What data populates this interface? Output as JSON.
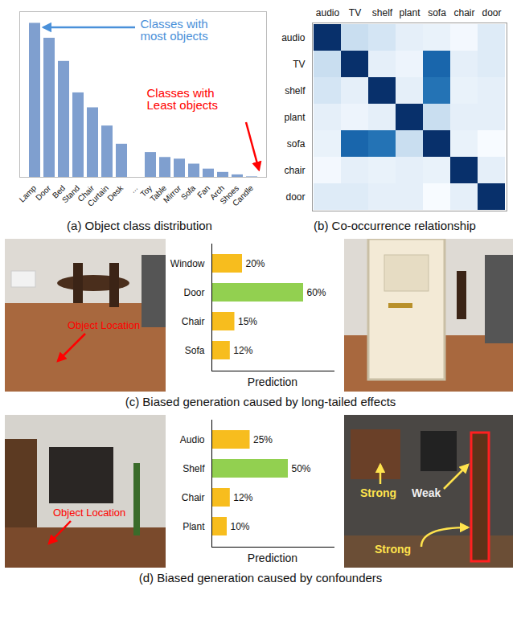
{
  "chart_data": [
    {
      "type": "bar",
      "title": "(a) Object class distribution",
      "categories": [
        "Lamp",
        "Door",
        "Bed",
        "Stand",
        "Chair",
        "Curtain",
        "Desk",
        "...",
        "Toy",
        "Table",
        "Mirror",
        "Sofa",
        "Fan",
        "Arch",
        "Shoes",
        "Candle"
      ],
      "values": [
        93,
        84,
        70,
        51,
        42,
        31,
        20,
        null,
        15,
        12,
        11,
        8,
        5,
        3,
        1.5,
        0.3
      ],
      "color": "#7f9fcf",
      "ylim": [
        0,
        100
      ],
      "tick_labels": "x",
      "annotations": [
        "Classes with most objects",
        "Classes with Least objects"
      ]
    },
    {
      "type": "heatmap",
      "title": "(b) Co-occurrence relationship",
      "categories": [
        "audio",
        "TV",
        "shelf",
        "plant",
        "sofa",
        "chair",
        "door"
      ],
      "values": [
        [
          1.0,
          0.25,
          0.2,
          0.12,
          0.1,
          0.05,
          0.15
        ],
        [
          0.25,
          1.0,
          0.12,
          0.08,
          0.8,
          0.12,
          0.15
        ],
        [
          0.2,
          0.12,
          1.0,
          0.12,
          0.75,
          0.1,
          0.12
        ],
        [
          0.12,
          0.08,
          0.12,
          1.0,
          0.25,
          0.12,
          0.12
        ],
        [
          0.1,
          0.8,
          0.75,
          0.25,
          1.0,
          0.1,
          0.03
        ],
        [
          0.05,
          0.12,
          0.1,
          0.12,
          0.1,
          1.0,
          0.12
        ],
        [
          0.15,
          0.15,
          0.12,
          0.12,
          0.03,
          0.12,
          1.0
        ]
      ]
    },
    {
      "type": "bar",
      "orientation": "horizontal",
      "title": "(c) Biased generation caused by long-tailed effects",
      "xlabel": "Prediction",
      "categories": [
        "Window",
        "Door",
        "Chair",
        "Sofa"
      ],
      "values": [
        20,
        60,
        15,
        12
      ],
      "value_labels": [
        "20%",
        "60%",
        "15%",
        "12%"
      ],
      "colors": [
        "#f7bd1e",
        "#92d050",
        "#f7bd1e",
        "#f7bd1e"
      ],
      "xlim": [
        0,
        80
      ],
      "data_labels": true,
      "tick_labels": "y",
      "annotations": [
        "Object Location"
      ]
    },
    {
      "type": "bar",
      "orientation": "horizontal",
      "title": "(d) Biased generation caused by confounders",
      "xlabel": "Prediction",
      "categories": [
        "Audio",
        "Shelf",
        "Chair",
        "Plant"
      ],
      "values": [
        25,
        50,
        12,
        10
      ],
      "value_labels": [
        "25%",
        "50%",
        "12%",
        "10%"
      ],
      "colors": [
        "#f7bd1e",
        "#92d050",
        "#f7bd1e",
        "#f7bd1e"
      ],
      "xlim": [
        0,
        80
      ],
      "data_labels": true,
      "tick_labels": "y",
      "annotations": [
        "Object Location",
        "Weak",
        "Strong",
        "Strong"
      ]
    }
  ]
}
